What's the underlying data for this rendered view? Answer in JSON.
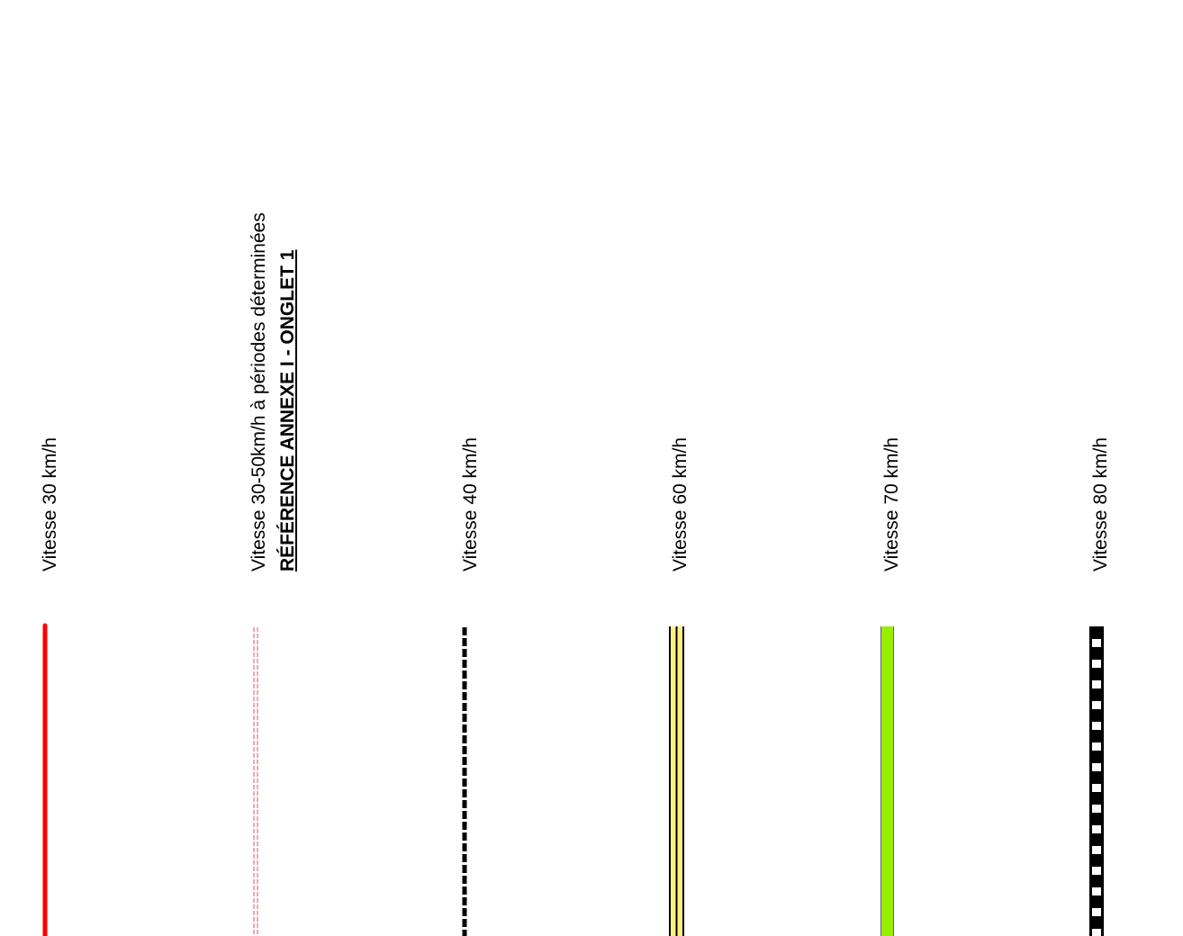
{
  "legend": {
    "items": [
      {
        "label": "Vitesse 30 km/h",
        "style": "solid",
        "color": "#ff0000"
      },
      {
        "label": "Vitesse 30-50km/h à périodes déterminées",
        "reference": "RÉFÉRENCE ANNEXE I - ONGLET 1",
        "style": "double-dashed",
        "color": "#e87070"
      },
      {
        "label": "Vitesse 40 km/h",
        "style": "dashed",
        "color": "#000000"
      },
      {
        "label": "Vitesse 60 km/h",
        "style": "black-yellow-black",
        "color": "#fff080"
      },
      {
        "label": "Vitesse 70 km/h",
        "style": "solid-outlined",
        "color": "#99ee00"
      },
      {
        "label": "Vitesse 80 km/h",
        "style": "checkered",
        "color": "#000000"
      }
    ]
  }
}
